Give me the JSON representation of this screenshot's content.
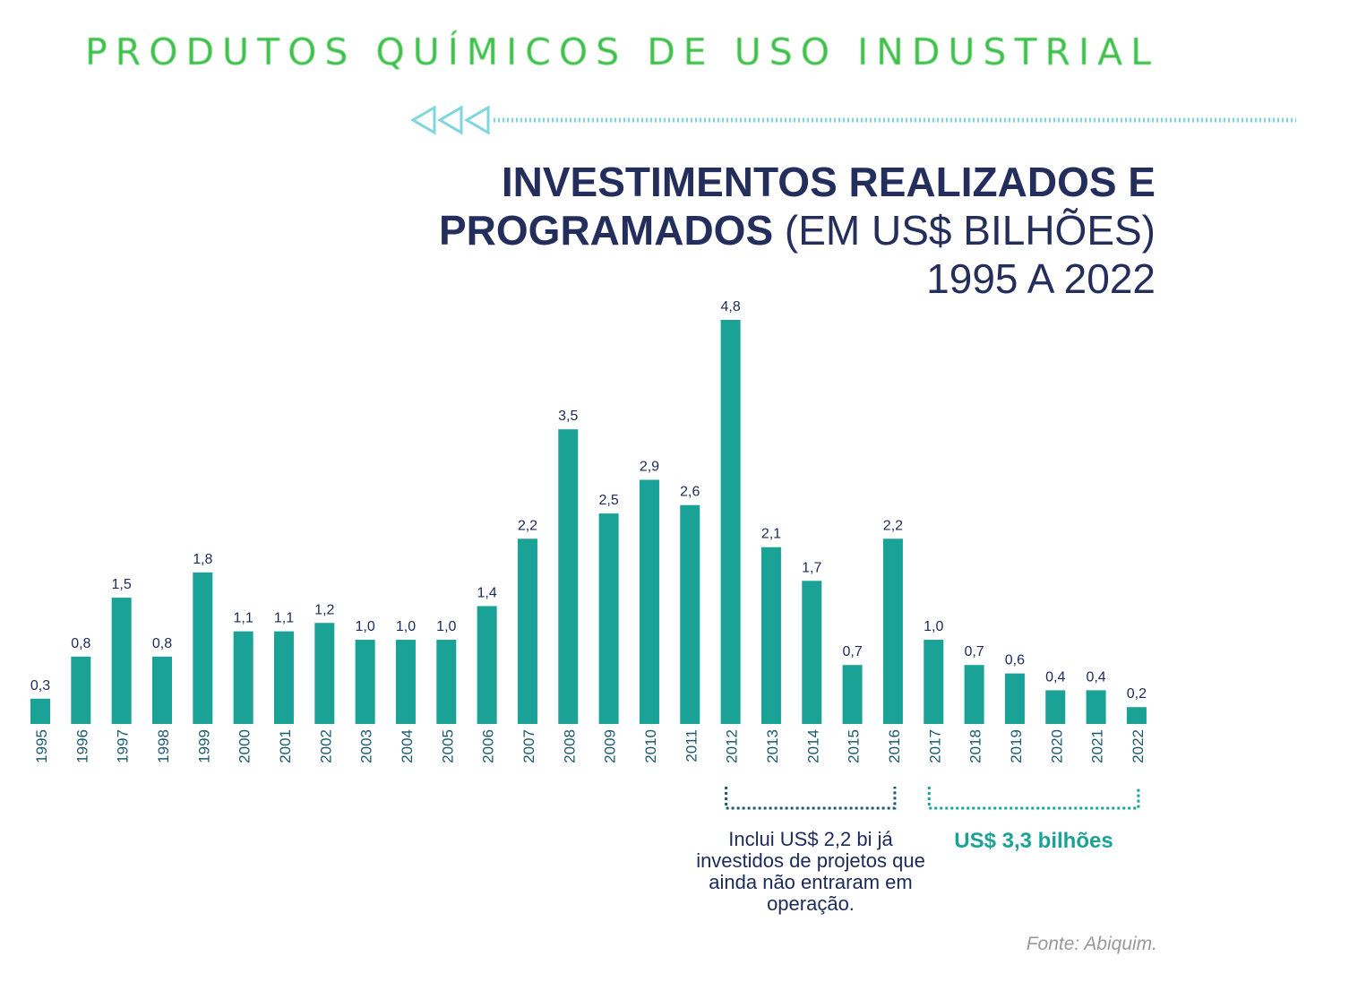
{
  "header": {
    "section_title": "PRODUTOS QUÍMICOS DE USO INDUSTRIAL"
  },
  "title": {
    "line1": "INVESTIMENTOS REALIZADOS E",
    "line2_bold": "PROGRAMADOS",
    "line2_light": " (EM US$ BILHÕES)",
    "line3": "1995 A 2022"
  },
  "annotations": {
    "note": "Inclui US$ 2,2 bi já investidos de projetos que ainda não entraram em operação.",
    "total": "US$ 3,3 bilhões",
    "source": "Fonte: Abiquim."
  },
  "colors": {
    "bar": "#1aa296",
    "title": "#242e5c",
    "header": "#3fbf4c",
    "bracket_dark": "#1b5a6e",
    "bracket_teal": "#1aa296"
  },
  "chart_data": {
    "type": "bar",
    "title": "INVESTIMENTOS REALIZADOS E PROGRAMADOS (EM US$ BILHÕES) 1995 A 2022",
    "xlabel": "",
    "ylabel": "",
    "categories": [
      "1995",
      "1996",
      "1997",
      "1998",
      "1999",
      "2000",
      "2001",
      "2002",
      "2003",
      "2004",
      "2005",
      "2006",
      "2007",
      "2008",
      "2009",
      "2010",
      "2011",
      "2012",
      "2013",
      "2014",
      "2015",
      "2016",
      "2017",
      "2018",
      "2019",
      "2020",
      "2021",
      "2022"
    ],
    "values": [
      0.3,
      0.8,
      1.5,
      0.8,
      1.8,
      1.1,
      1.1,
      1.2,
      1.0,
      1.0,
      1.0,
      1.4,
      2.2,
      3.5,
      2.5,
      2.9,
      2.6,
      4.8,
      2.1,
      1.7,
      0.7,
      2.2,
      1.0,
      0.7,
      0.6,
      0.4,
      0.4,
      0.2
    ],
    "value_labels": [
      "0,3",
      "0,8",
      "1,5",
      "0,8",
      "1,8",
      "1,1",
      "1,1",
      "1,2",
      "1,0",
      "1,0",
      "1,0",
      "1,4",
      "2,2",
      "3,5",
      "2,5",
      "2,9",
      "2,6",
      "4,8",
      "2,1",
      "1,7",
      "0,7",
      "2,2",
      "1,0",
      "0,7",
      "0,6",
      "0,4",
      "0,4",
      "0,2"
    ],
    "ylim": [
      0,
      4.8
    ],
    "grid": false,
    "legend": "none"
  }
}
